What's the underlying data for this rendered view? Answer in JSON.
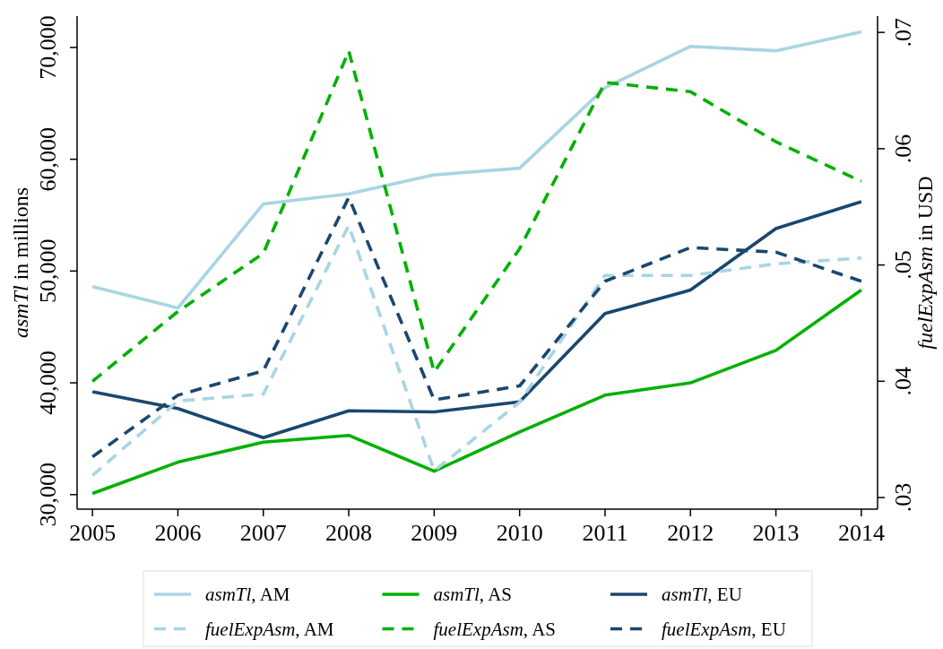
{
  "chart_data": {
    "type": "line",
    "ylabel": "asmTl in millions",
    "y2label": "fuelExpAsm in USD",
    "x": [
      2005,
      2006,
      2007,
      2008,
      2009,
      2010,
      2011,
      2012,
      2013,
      2014
    ],
    "xlim": [
      2004.82,
      2014.19
    ],
    "xticks": [
      2005,
      2006,
      2007,
      2008,
      2009,
      2010,
      2011,
      2012,
      2013,
      2014
    ],
    "ylim": [
      28700,
      72800
    ],
    "yticks": [
      {
        "value": 30000,
        "label": "30,000"
      },
      {
        "value": 40000,
        "label": "40,000"
      },
      {
        "value": 50000,
        "label": "50,000"
      },
      {
        "value": 60000,
        "label": "60,000"
      },
      {
        "value": 70000,
        "label": "70,000"
      }
    ],
    "y2lim": [
      0.029,
      0.0714
    ],
    "y2ticks": [
      {
        "value": 0.03,
        "label": ".03"
      },
      {
        "value": 0.04,
        "label": ".04"
      },
      {
        "value": 0.05,
        "label": ".05"
      },
      {
        "value": 0.06,
        "label": ".06"
      },
      {
        "value": 0.07,
        "label": ".07"
      }
    ],
    "legend": "bottom",
    "series": [
      {
        "name": "asmTl, AM",
        "color": "#a8d5e3",
        "line_style": "solid",
        "values": [
          48600,
          46700,
          56000,
          56900,
          58600,
          59200,
          66400,
          70100,
          69700,
          71400
        ]
      },
      {
        "name": "asmTl, AS",
        "color": "#00b000",
        "line_style": "solid",
        "values": [
          30100,
          32900,
          34700,
          35300,
          32100,
          35600,
          38900,
          40000,
          42900,
          48300
        ]
      },
      {
        "name": "asmTl, EU",
        "color": "#1a476f",
        "line_style": "solid",
        "values": [
          39200,
          37700,
          35100,
          37500,
          37400,
          38300,
          46200,
          48300,
          53800,
          56200
        ]
      },
      {
        "name": "fuelExpAsm, AM",
        "color": "#a8d5e3",
        "line_style": "dashed",
        "axis": "y2",
        "values": [
          0.0319,
          0.0383,
          0.0389,
          0.0534,
          0.0323,
          0.0382,
          0.0491,
          0.0491,
          0.0501,
          0.0506
        ]
      },
      {
        "name": "fuelExpAsm, AS",
        "color": "#00b000",
        "line_style": "dashed",
        "axis": "y2",
        "values": [
          0.04,
          0.046,
          0.051,
          0.0684,
          0.0408,
          0.0514,
          0.0657,
          0.0649,
          0.0606,
          0.0572
        ]
      },
      {
        "name": "fuelExpAsm, EU",
        "color": "#1a476f",
        "line_style": "dashed",
        "axis": "y2",
        "values": [
          0.0335,
          0.0388,
          0.0409,
          0.0558,
          0.0384,
          0.0396,
          0.0486,
          0.0515,
          0.0511,
          0.0486
        ]
      }
    ]
  }
}
